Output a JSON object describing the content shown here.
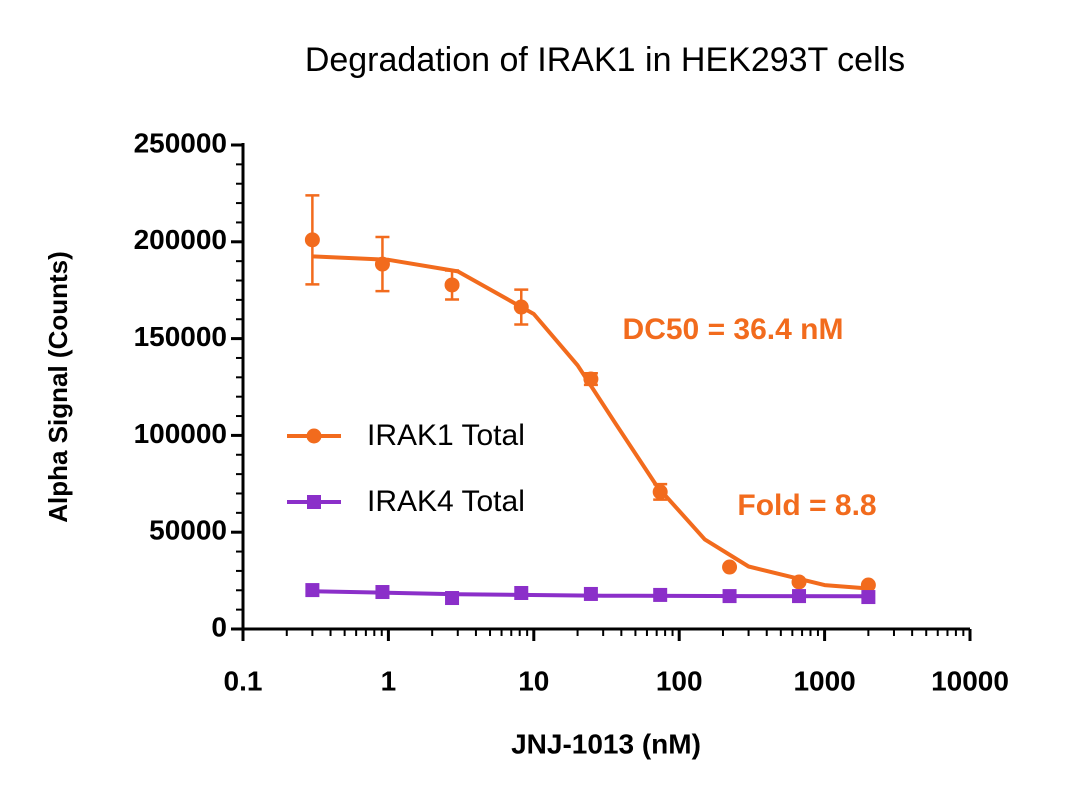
{
  "chart_data": {
    "type": "scatter",
    "title": "Degradation of IRAK1 in HEK293T cells",
    "x_label": "JNJ-1013 (nM)",
    "y_label": "Alpha Signal (Counts)",
    "x_scale": "log",
    "xlim": [
      0.1,
      10000
    ],
    "xticks": [
      0.1,
      1,
      10,
      100,
      1000,
      10000
    ],
    "ylim": [
      0,
      250000
    ],
    "yticks": [
      0,
      50000,
      100000,
      150000,
      200000,
      250000
    ],
    "series": [
      {
        "name": "IRAK1 Total",
        "color": "#f26b1d",
        "marker": "circle",
        "x": [
          0.3,
          0.91,
          2.74,
          8.2,
          24.7,
          74,
          222,
          667,
          2000
        ],
        "values": [
          201000,
          188500,
          177700,
          166300,
          129100,
          70800,
          32000,
          24300,
          22700
        ],
        "errors": [
          23000,
          14000,
          7500,
          9000,
          3000,
          4000,
          null,
          null,
          null
        ],
        "fit": {
          "x": [
            0.3,
            1,
            3,
            10,
            20,
            36.4,
            70,
            150,
            300,
            1000,
            2000
          ],
          "values": [
            192450,
            190700,
            184700,
            162700,
            136200,
            106250,
            73900,
            46300,
            32300,
            22700,
            20900
          ]
        }
      },
      {
        "name": "IRAK4 Total",
        "color": "#8b2fc9",
        "marker": "square",
        "x": [
          0.3,
          0.91,
          2.74,
          8.2,
          24.7,
          74,
          222,
          667,
          2000
        ],
        "values": [
          20100,
          19100,
          16000,
          18600,
          18100,
          17600,
          17000,
          17000,
          16500
        ],
        "errors": [
          null,
          null,
          null,
          null,
          null,
          null,
          null,
          null,
          null
        ],
        "fit": {
          "x": [
            0.3,
            3,
            30,
            300,
            2000
          ],
          "values": [
            19500,
            18000,
            17200,
            17000,
            16900
          ]
        }
      }
    ],
    "annotations": [
      {
        "text": "DC50 = 36.4 nM",
        "color": "#f26b1d"
      },
      {
        "text": "Fold = 8.8",
        "color": "#f26b1d"
      }
    ]
  }
}
